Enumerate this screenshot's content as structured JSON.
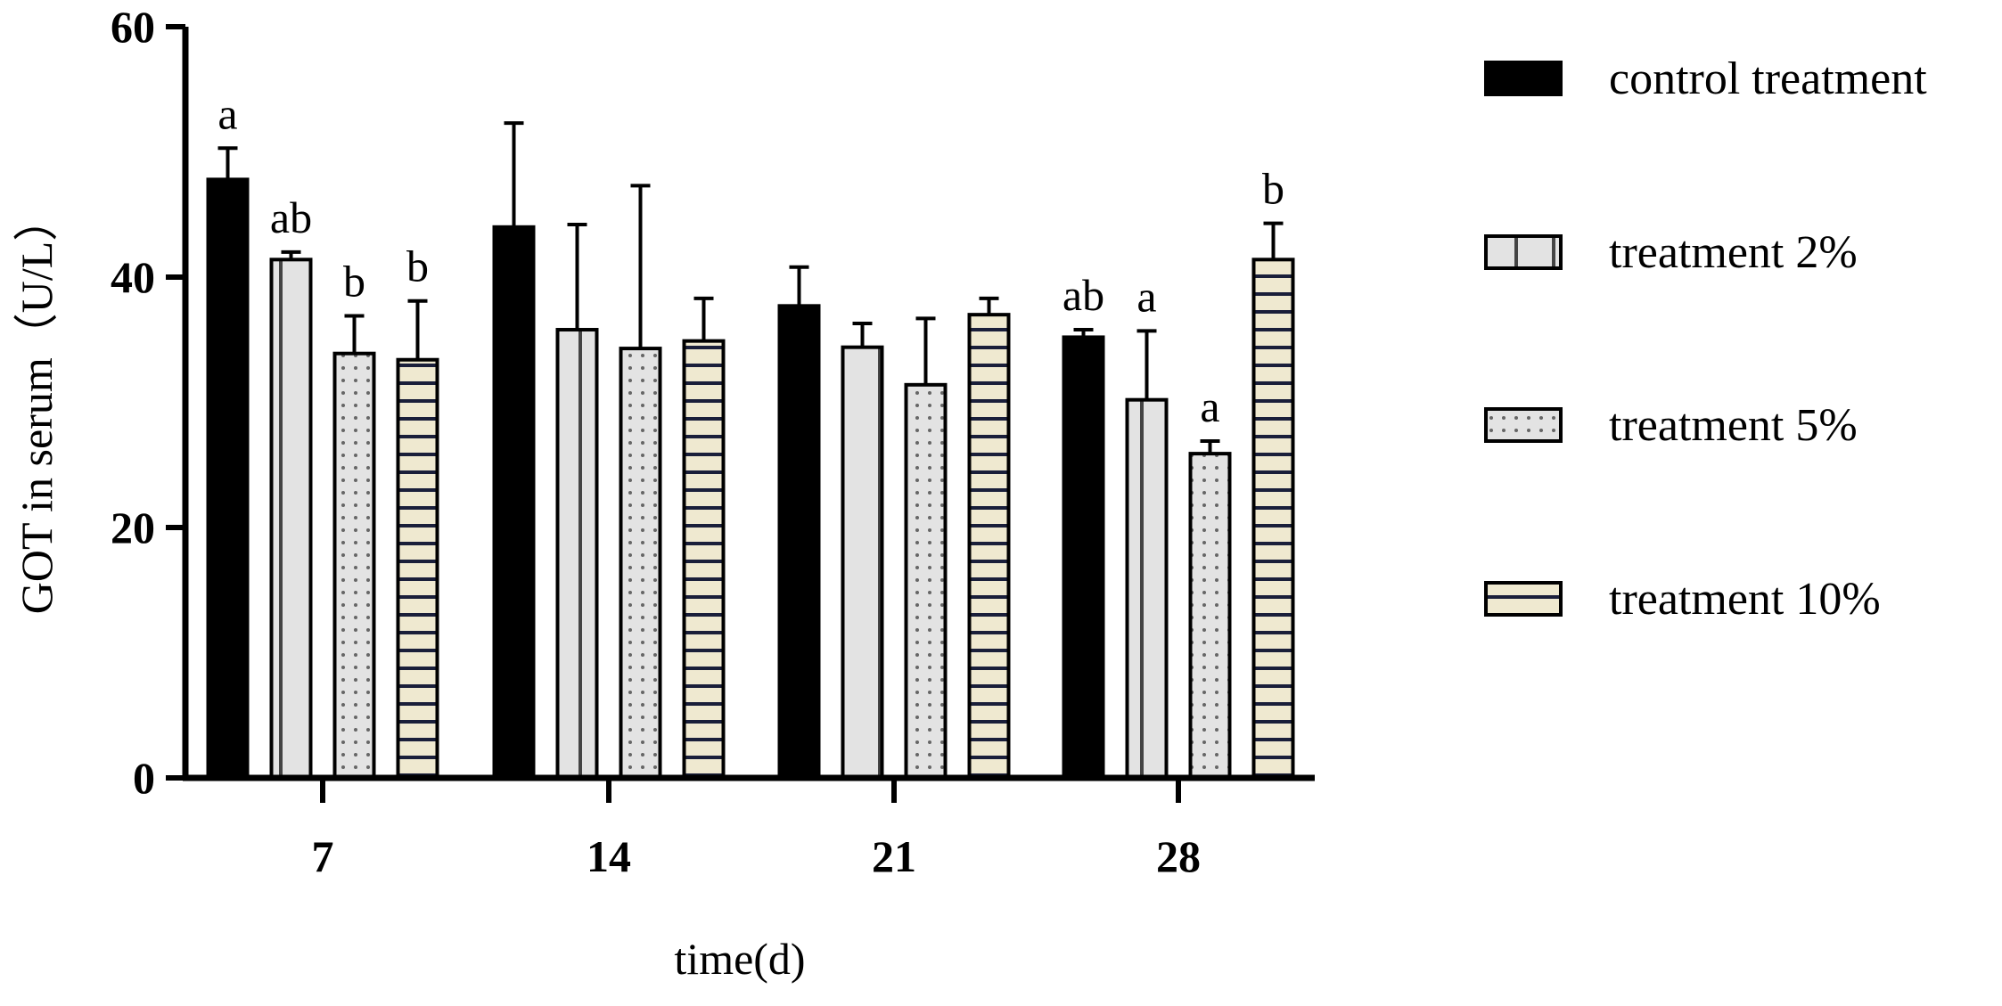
{
  "chart_data": {
    "type": "bar",
    "title": "",
    "xlabel": "time(d)",
    "ylabel": "GOT in serum（U/L）",
    "ylim": [
      0,
      60
    ],
    "yticks": [
      0,
      20,
      40,
      60
    ],
    "categories": [
      "7",
      "14",
      "21",
      "28"
    ],
    "legend_position": "right",
    "series": [
      {
        "name": "control treatment",
        "pattern": "solid",
        "fill": "#000000",
        "values": [
          47.8,
          44.0,
          37.7,
          35.2
        ],
        "errors": [
          2.5,
          8.3,
          3.1,
          0.6
        ],
        "sig_labels": [
          "a",
          "",
          "",
          "ab"
        ]
      },
      {
        "name": "treatment 2%",
        "pattern": "vertical-lines",
        "fill": "#e3e3e3",
        "values": [
          41.4,
          35.8,
          34.4,
          30.2
        ],
        "errors": [
          0.6,
          8.4,
          1.9,
          5.5
        ],
        "sig_labels": [
          "ab",
          "",
          "",
          "a"
        ]
      },
      {
        "name": "treatment 5%",
        "pattern": "dots",
        "fill": "#e3e3e3",
        "values": [
          33.9,
          34.3,
          31.4,
          25.9
        ],
        "errors": [
          3.0,
          13.0,
          5.3,
          1.0
        ],
        "sig_labels": [
          "b",
          "",
          "",
          "a"
        ]
      },
      {
        "name": "treatment 10%",
        "pattern": "horizontal-lines",
        "fill": "#efe9d0",
        "values": [
          33.4,
          34.9,
          37.0,
          41.4
        ],
        "errors": [
          4.7,
          3.4,
          1.3,
          2.9
        ],
        "sig_labels": [
          "b",
          "",
          "",
          "b"
        ]
      }
    ]
  }
}
